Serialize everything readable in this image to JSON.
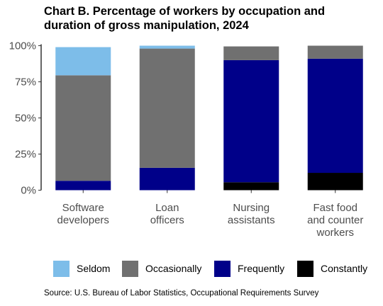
{
  "title": "Chart B. Percentage of workers by occupation and\nduration of gross manipulation,  2024",
  "source": "Source: U.S. Bureau of Labor Statistics, Occupational Requirements Survey",
  "chart_data": {
    "type": "bar",
    "stacked": true,
    "categories": [
      "Software\ndevelopers",
      "Loan\nofficers",
      "Nursing\nassistants",
      "Fast food\nand counter\nworkers"
    ],
    "ylim": [
      0,
      100
    ],
    "yticks": [
      "0%",
      "25%",
      "50%",
      "75%",
      "100%"
    ],
    "grid": false,
    "legend_position": "bottom",
    "series": [
      {
        "name": "Constantly",
        "color": "#000000",
        "values": [
          0,
          0,
          5.5,
          12
        ]
      },
      {
        "name": "Frequently",
        "color": "#000089",
        "values": [
          6.5,
          15.5,
          84.5,
          79
        ]
      },
      {
        "name": "Occasionally",
        "color": "#707070",
        "values": [
          73,
          82.5,
          9.5,
          9
        ]
      },
      {
        "name": "Seldom",
        "color": "#7dbde9",
        "values": [
          19.5,
          2,
          0,
          0
        ]
      }
    ],
    "legend_order": [
      "Seldom",
      "Occasionally",
      "Frequently",
      "Constantly"
    ]
  }
}
